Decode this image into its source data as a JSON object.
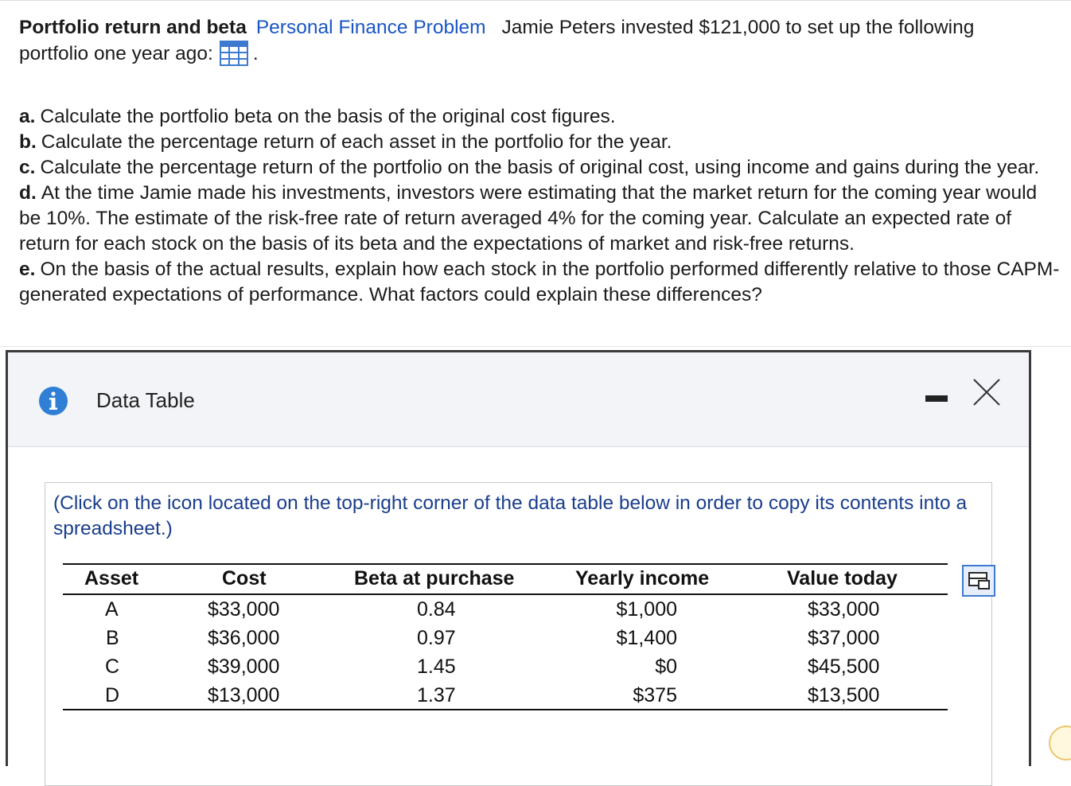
{
  "problem": {
    "title": "Portfolio return and beta",
    "category_link": "Personal Finance Problem",
    "intro_line1": "Jamie Peters invested $121,000 to set up the following",
    "intro_line2": "portfolio one year ago:",
    "period": "."
  },
  "parts": [
    {
      "label": "a.",
      "text": "Calculate the portfolio beta on the basis of the original cost figures."
    },
    {
      "label": "b.",
      "text": "Calculate the percentage return of each asset in the portfolio for the year."
    },
    {
      "label": "c.",
      "text": "Calculate the percentage return of the portfolio on the basis of original cost, using income and gains during the year."
    },
    {
      "label": "d.",
      "text": "At the time Jamie made his investments, investors were estimating that the market return for the coming year would be 10%.  The estimate of the risk-free rate of return averaged 4% for the coming year.  Calculate an expected rate of return for each stock on the basis of its beta and the expectations of market and risk-free returns."
    },
    {
      "label": "e.",
      "text": "On the basis of the actual results, explain how each stock in the portfolio performed differently relative to those CAPM-generated expectations of performance.  What factors could explain these differences?"
    }
  ],
  "dialog": {
    "title": "Data Table",
    "note": "(Click on the icon located on the top-right corner of the data table below in order to copy its contents into a spreadsheet.)"
  },
  "table": {
    "headers": [
      "Asset",
      "Cost",
      "Beta at purchase",
      "Yearly income",
      "Value today"
    ],
    "rows": [
      [
        "A",
        "$33,000",
        "0.84",
        "$1,000",
        "$33,000"
      ],
      [
        "B",
        "$36,000",
        "0.97",
        "$1,400",
        "$37,000"
      ],
      [
        "C",
        "$39,000",
        "1.45",
        "$0",
        "$45,500"
      ],
      [
        "D",
        "$13,000",
        "1.37",
        "$375",
        "$13,500"
      ]
    ]
  },
  "colors": {
    "link": "#1a56c4",
    "note_text": "#1a3e8c",
    "info_icon": "#2f7fd6",
    "copy_icon": "#3e79d0",
    "header_bg": "#f2f4f8"
  },
  "icons": {
    "table_icon": "grid-icon",
    "info": "info-icon",
    "minimize": "minimize-icon",
    "close": "close-icon",
    "copy": "copy-to-spreadsheet-icon"
  }
}
